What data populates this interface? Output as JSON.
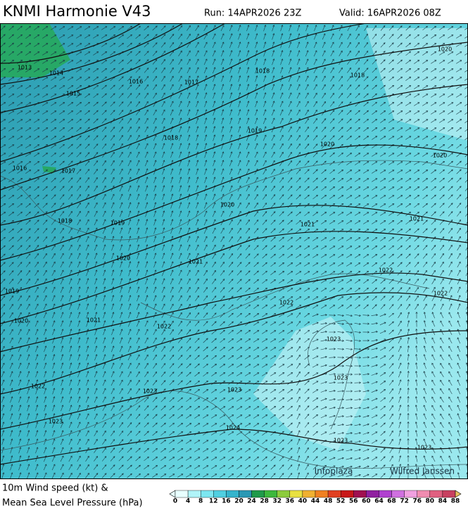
{
  "header": {
    "title": "KNMI Harmonie V43",
    "run": "Run: 14APR2026 23Z",
    "valid": "Valid: 16APR2026 08Z"
  },
  "isobar_labels": [
    1013,
    1014,
    1015,
    1016,
    1017,
    1018,
    1018,
    1020,
    1016,
    1017,
    1018,
    1019,
    1020,
    1020,
    1020,
    1018,
    1019,
    1021,
    1021,
    1020,
    1021,
    1022,
    1022,
    1019,
    1020,
    1021,
    1022,
    1022,
    1023,
    1022,
    1023,
    1023,
    1023,
    1023,
    1024,
    1023,
    1023
  ],
  "credits": [
    "Infoplaza",
    "Wilfred Janssen"
  ],
  "legend": {
    "line1": "10m Wind speed (kt) &",
    "line2": "Mean Sea Level Pressure (hPa)",
    "ticks": [
      0,
      4,
      8,
      12,
      16,
      20,
      24,
      28,
      32,
      36,
      40,
      44,
      48,
      52,
      56,
      60,
      64,
      68,
      72,
      76,
      80,
      84,
      88
    ],
    "colors": [
      "#e8ffff",
      "#b0f4f8",
      "#7ce6f0",
      "#4fcfe0",
      "#34b4cc",
      "#2a98b4",
      "#1f9a4a",
      "#3cb83c",
      "#8ccc3c",
      "#e8e040",
      "#f0b030",
      "#f08020",
      "#e04020",
      "#c81818",
      "#a01050",
      "#9020a0",
      "#b040d0",
      "#d070e0",
      "#f0a0e0",
      "#f08cb0",
      "#e06080",
      "#c84060"
    ]
  }
}
